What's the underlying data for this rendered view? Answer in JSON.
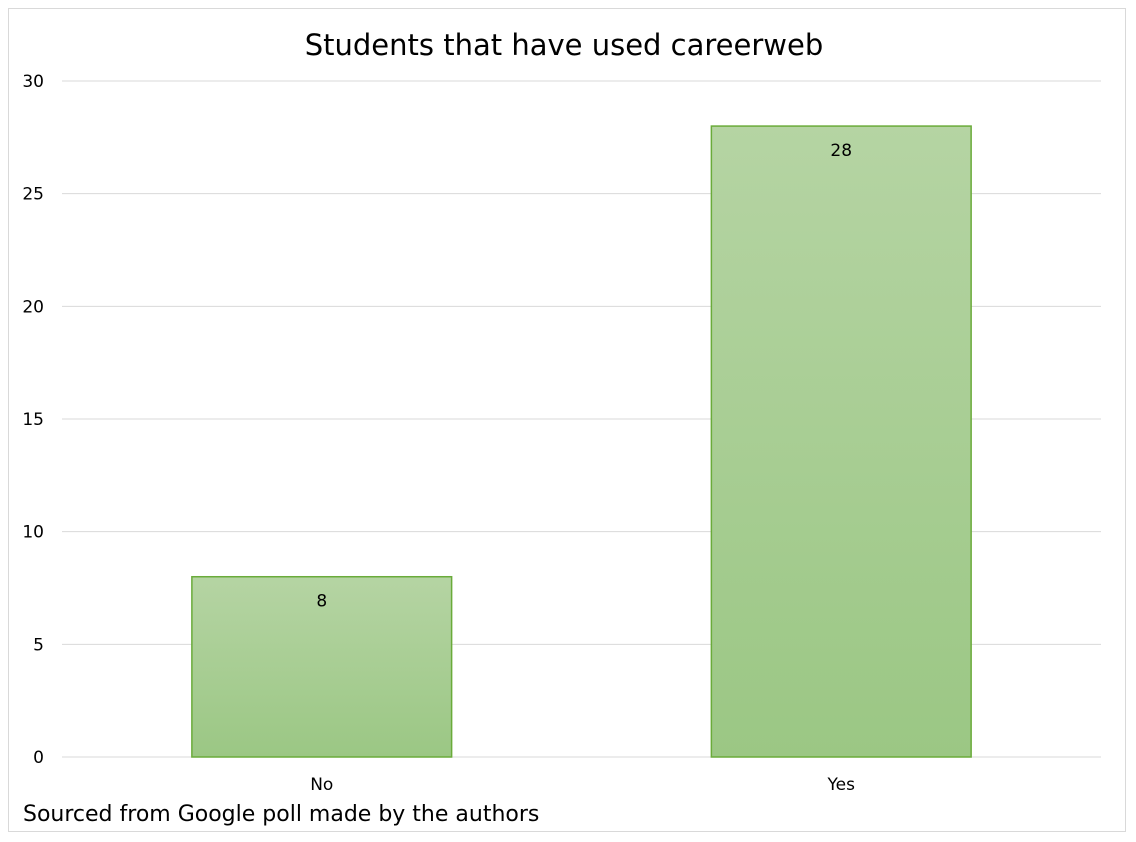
{
  "chart_data": {
    "type": "bar",
    "title": "Students that have used careerweb",
    "categories": [
      "No",
      "Yes"
    ],
    "values": [
      8,
      28
    ],
    "data_labels": [
      "8",
      "28"
    ],
    "xlabel": "",
    "ylabel": "",
    "ylim": [
      0,
      30
    ],
    "yticks": [
      0,
      5,
      10,
      15,
      20,
      25,
      30
    ],
    "ytick_labels": [
      "0",
      "5",
      "10",
      "15",
      "20",
      "25",
      "30"
    ],
    "grid": true,
    "legend": "none",
    "bar_color_top": "#b5d4a3",
    "bar_color_bottom": "#9bc784",
    "bar_border_color": "#6aab3a",
    "gridline_color": "#d9d9d9"
  },
  "footnote": "Sourced from Google poll made by the authors"
}
